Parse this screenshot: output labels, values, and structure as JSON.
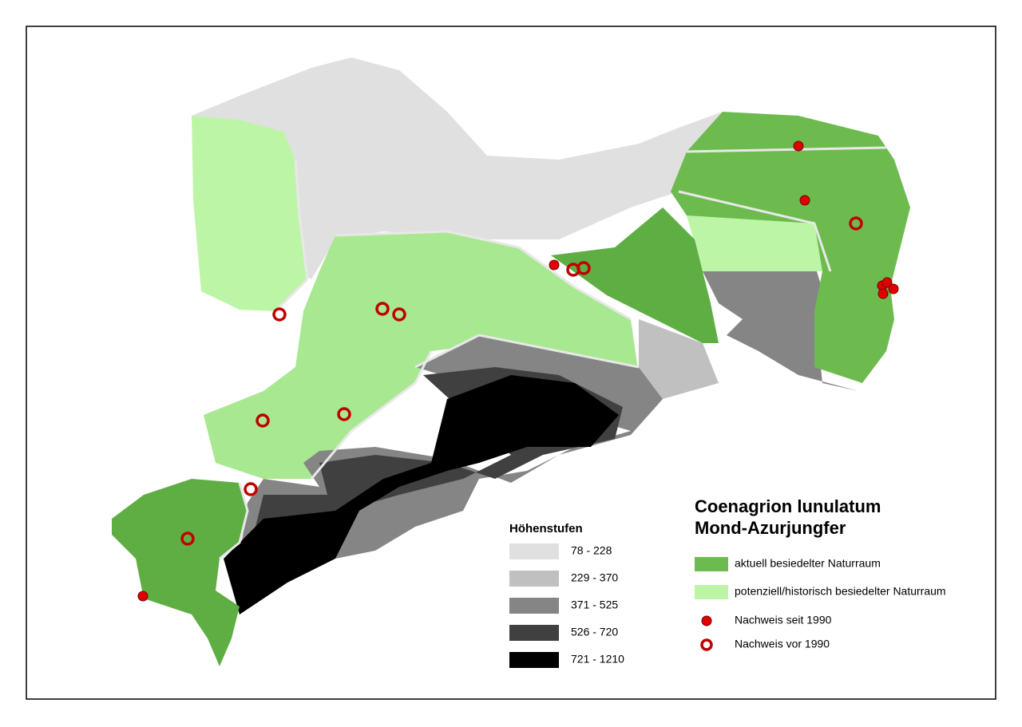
{
  "title": {
    "line1": "Coenagrion lunulatum",
    "line2": "Mond-Azurjungfer"
  },
  "elevation_legend": {
    "title": "Höhenstufen",
    "classes": [
      {
        "label": "78 - 228",
        "color": "#e0e0e0"
      },
      {
        "label": "229 - 370",
        "color": "#c0c0c0"
      },
      {
        "label": "371 - 525",
        "color": "#858585"
      },
      {
        "label": "526 - 720",
        "color": "#404040"
      },
      {
        "label": "721 - 1210",
        "color": "#000000"
      }
    ]
  },
  "habitat_legend": [
    {
      "label": "aktuell besiedelter Naturraum",
      "color": "#6dbb4f"
    },
    {
      "label": "potenziell/historisch besiedelter Naturraum",
      "color": "#bdf5a6"
    }
  ],
  "record_legend": [
    {
      "label": "Nachweis seit 1990",
      "style": "filled"
    },
    {
      "label": "Nachweis vor 1990",
      "style": "ring"
    }
  ]
}
